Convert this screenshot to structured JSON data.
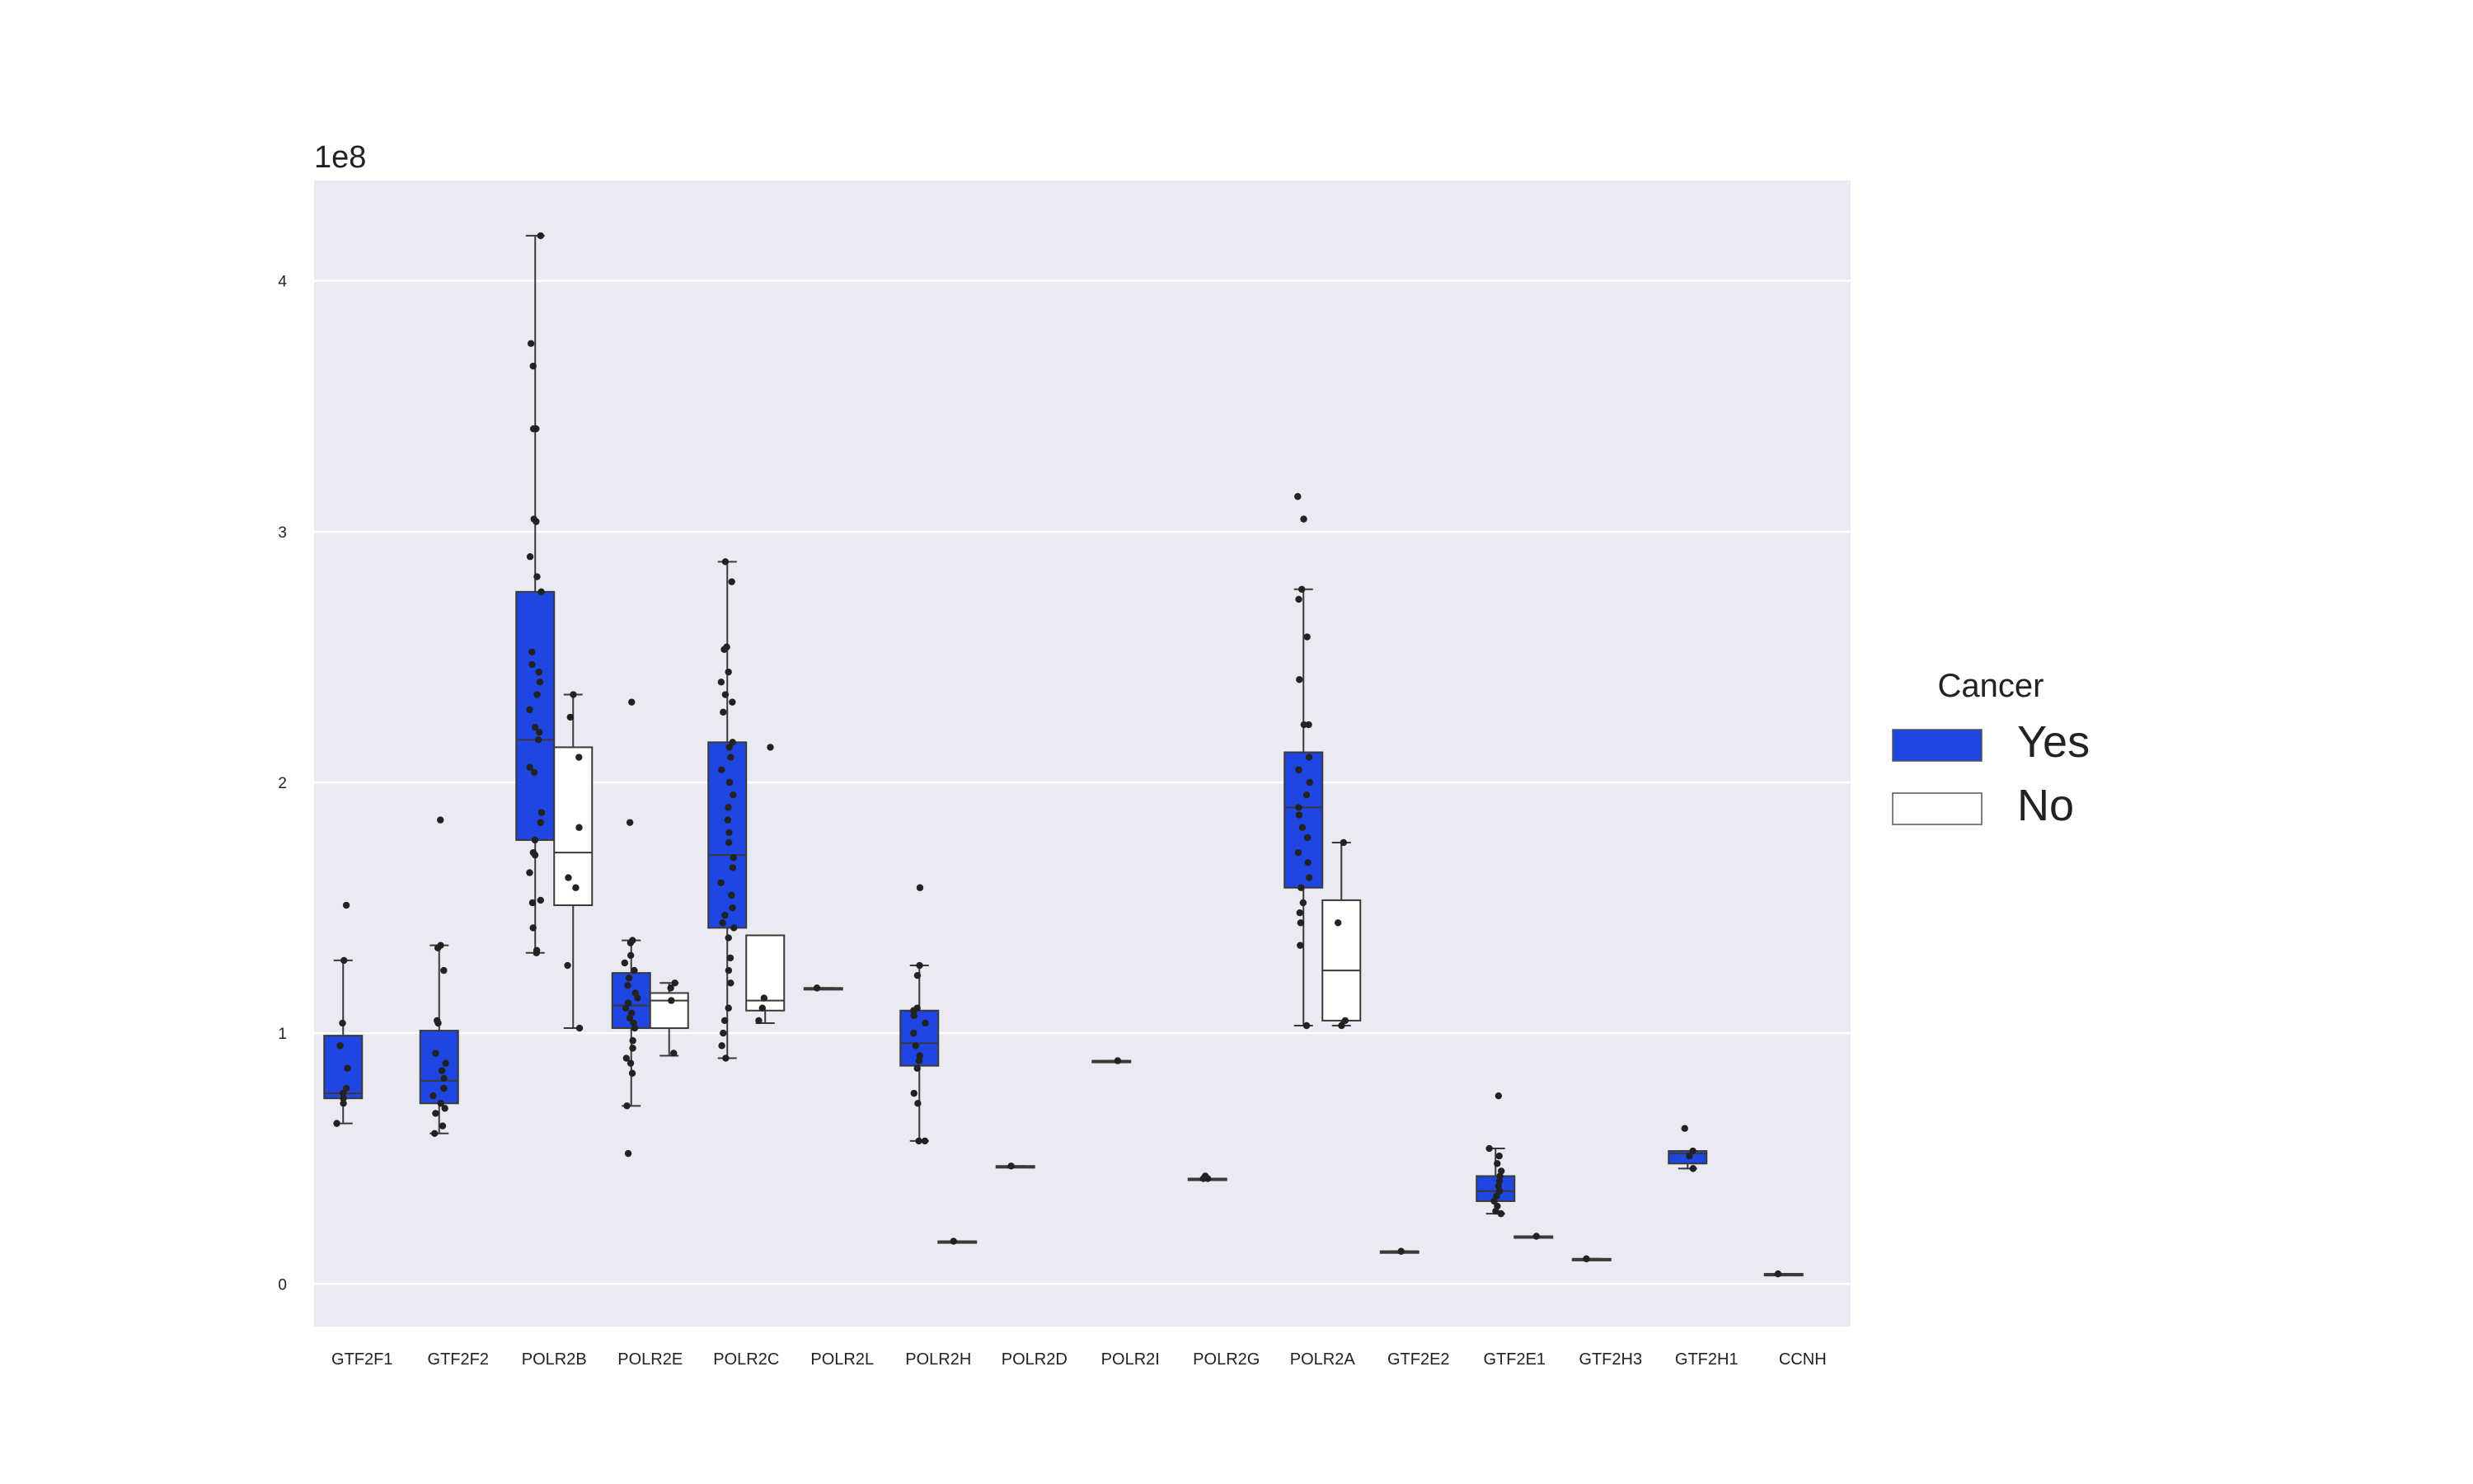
{
  "chart_data": {
    "type": "box",
    "exponent_label": "1e8",
    "y_ticks": [
      0,
      1,
      2,
      3,
      4
    ],
    "ylim": [
      -0.17,
      4.4
    ],
    "grid": true,
    "legend": {
      "title": "Cancer",
      "position": "right",
      "entries": [
        {
          "name": "Yes",
          "color": "#1f46e0"
        },
        {
          "name": "No",
          "color": "#ffffff"
        }
      ]
    },
    "colors": {
      "Yes": "#1f46e0",
      "No": "#ffffff",
      "background": "#eaeaf2",
      "grid": "#ffffff",
      "points": "#222222"
    },
    "categories": [
      "GTF2F1",
      "GTF2F2",
      "POLR2B",
      "POLR2E",
      "POLR2C",
      "POLR2L",
      "POLR2H",
      "POLR2D",
      "POLR2I",
      "POLR2G",
      "POLR2A",
      "GTF2E2",
      "GTF2E1",
      "GTF2H3",
      "GTF2H1",
      "CCNH"
    ],
    "boxes": [
      {
        "category": "GTF2F1",
        "group": "Yes",
        "whisker_low": 0.64,
        "q1": 0.74,
        "median": 0.76,
        "q3": 0.99,
        "whisker_high": 1.29,
        "points": [
          1.51,
          1.29,
          1.04,
          0.95,
          0.86,
          0.78,
          0.76,
          0.74,
          0.72,
          0.64
        ]
      },
      {
        "category": "GTF2F2",
        "group": "Yes",
        "whisker_low": 0.6,
        "q1": 0.72,
        "median": 0.81,
        "q3": 1.01,
        "whisker_high": 1.35,
        "points": [
          1.85,
          1.35,
          1.34,
          1.25,
          1.05,
          1.04,
          0.92,
          0.88,
          0.85,
          0.82,
          0.78,
          0.75,
          0.72,
          0.7,
          0.68,
          0.63,
          0.6
        ]
      },
      {
        "category": "POLR2B",
        "group": "Yes",
        "whisker_low": 1.32,
        "q1": 1.77,
        "median": 2.17,
        "q3": 2.76,
        "whisker_high": 4.18,
        "points": [
          4.18,
          3.75,
          3.66,
          3.41,
          3.41,
          3.05,
          3.04,
          2.9,
          2.82,
          2.76,
          2.52,
          2.47,
          2.44,
          2.4,
          2.35,
          2.29,
          2.22,
          2.2,
          2.17,
          2.06,
          2.04,
          1.88,
          1.84,
          1.77,
          1.72,
          1.71,
          1.64,
          1.53,
          1.52,
          1.42,
          1.33,
          1.32
        ]
      },
      {
        "category": "POLR2B",
        "group": "No",
        "whisker_low": 1.02,
        "q1": 1.51,
        "median": 1.72,
        "q3": 2.14,
        "whisker_high": 2.35,
        "points": [
          2.35,
          2.26,
          2.1,
          1.82,
          1.62,
          1.58,
          1.27,
          1.02
        ]
      },
      {
        "category": "POLR2E",
        "group": "Yes",
        "whisker_low": 0.71,
        "q1": 1.02,
        "median": 1.11,
        "q3": 1.24,
        "whisker_high": 1.37,
        "points": [
          2.32,
          1.84,
          1.37,
          1.36,
          1.31,
          1.28,
          1.25,
          1.22,
          1.19,
          1.16,
          1.14,
          1.12,
          1.1,
          1.08,
          1.06,
          1.04,
          1.02,
          0.97,
          0.94,
          0.9,
          0.88,
          0.84,
          0.71,
          0.52
        ]
      },
      {
        "category": "POLR2E",
        "group": "No",
        "whisker_low": 0.91,
        "q1": 1.02,
        "median": 1.13,
        "q3": 1.16,
        "whisker_high": 1.2,
        "points": [
          1.2,
          1.18,
          1.13,
          0.92
        ]
      },
      {
        "category": "POLR2C",
        "group": "Yes",
        "whisker_low": 0.9,
        "q1": 1.42,
        "median": 1.71,
        "q3": 2.16,
        "whisker_high": 2.88,
        "points": [
          2.88,
          2.8,
          2.54,
          2.53,
          2.44,
          2.4,
          2.35,
          2.32,
          2.28,
          2.16,
          2.14,
          2.1,
          2.05,
          2.0,
          1.95,
          1.9,
          1.85,
          1.8,
          1.76,
          1.7,
          1.66,
          1.6,
          1.55,
          1.5,
          1.47,
          1.44,
          1.42,
          1.38,
          1.3,
          1.25,
          1.2,
          1.1,
          1.05,
          1.0,
          0.95,
          0.9
        ]
      },
      {
        "category": "POLR2C",
        "group": "No",
        "whisker_low": 1.04,
        "q1": 1.09,
        "median": 1.13,
        "q3": 1.39,
        "whisker_high": 1.39,
        "points": [
          2.14,
          1.14,
          1.1,
          1.05
        ]
      },
      {
        "category": "POLR2L",
        "group": "Yes",
        "whisker_low": 1.18,
        "q1": 1.18,
        "median": 1.18,
        "q3": 1.18,
        "whisker_high": 1.18,
        "points": [
          1.18
        ]
      },
      {
        "category": "POLR2H",
        "group": "Yes",
        "whisker_low": 0.57,
        "q1": 0.87,
        "median": 0.96,
        "q3": 1.09,
        "whisker_high": 1.27,
        "points": [
          1.58,
          1.27,
          1.23,
          1.1,
          1.09,
          1.07,
          1.04,
          1.0,
          0.95,
          0.91,
          0.89,
          0.86,
          0.76,
          0.72,
          0.57,
          0.57
        ]
      },
      {
        "category": "POLR2H",
        "group": "No",
        "whisker_low": 0.17,
        "q1": 0.17,
        "median": 0.17,
        "q3": 0.17,
        "whisker_high": 0.17,
        "points": [
          0.17
        ]
      },
      {
        "category": "POLR2D",
        "group": "Yes",
        "whisker_low": 0.47,
        "q1": 0.47,
        "median": 0.47,
        "q3": 0.47,
        "whisker_high": 0.47,
        "points": [
          0.47
        ]
      },
      {
        "category": "POLR2I",
        "group": "Yes",
        "whisker_low": 0.89,
        "q1": 0.89,
        "median": 0.89,
        "q3": 0.89,
        "whisker_high": 0.89,
        "points": [
          0.89
        ]
      },
      {
        "category": "POLR2G",
        "group": "Yes",
        "whisker_low": 0.42,
        "q1": 0.42,
        "median": 0.42,
        "q3": 0.42,
        "whisker_high": 0.42,
        "points": [
          0.43,
          0.42,
          0.42
        ]
      },
      {
        "category": "POLR2A",
        "group": "Yes",
        "whisker_low": 1.03,
        "q1": 1.58,
        "median": 1.9,
        "q3": 2.12,
        "whisker_high": 2.77,
        "points": [
          3.14,
          3.05,
          2.77,
          2.73,
          2.58,
          2.41,
          2.23,
          2.23,
          2.1,
          2.05,
          2.0,
          1.95,
          1.9,
          1.87,
          1.82,
          1.78,
          1.72,
          1.68,
          1.62,
          1.58,
          1.52,
          1.48,
          1.44,
          1.35,
          1.03
        ]
      },
      {
        "category": "POLR2A",
        "group": "No",
        "whisker_low": 1.03,
        "q1": 1.05,
        "median": 1.25,
        "q3": 1.53,
        "whisker_high": 1.76,
        "points": [
          1.76,
          1.44,
          1.05,
          1.03
        ]
      },
      {
        "category": "GTF2E2",
        "group": "Yes",
        "whisker_low": 0.13,
        "q1": 0.13,
        "median": 0.13,
        "q3": 0.13,
        "whisker_high": 0.13,
        "points": [
          0.13
        ]
      },
      {
        "category": "GTF2E1",
        "group": "Yes",
        "whisker_low": 0.28,
        "q1": 0.33,
        "median": 0.37,
        "q3": 0.43,
        "whisker_high": 0.54,
        "points": [
          0.75,
          0.54,
          0.51,
          0.48,
          0.45,
          0.43,
          0.41,
          0.39,
          0.37,
          0.35,
          0.33,
          0.31,
          0.29,
          0.28
        ]
      },
      {
        "category": "GTF2E1",
        "group": "No",
        "whisker_low": 0.19,
        "q1": 0.19,
        "median": 0.19,
        "q3": 0.19,
        "whisker_high": 0.19,
        "points": [
          0.19
        ]
      },
      {
        "category": "GTF2H3",
        "group": "Yes",
        "whisker_low": 0.1,
        "q1": 0.1,
        "median": 0.1,
        "q3": 0.1,
        "whisker_high": 0.1,
        "points": [
          0.1
        ]
      },
      {
        "category": "GTF2H1",
        "group": "Yes",
        "whisker_low": 0.46,
        "q1": 0.48,
        "median": 0.52,
        "q3": 0.53,
        "whisker_high": 0.53,
        "points": [
          0.62,
          0.53,
          0.51,
          0.46
        ]
      },
      {
        "category": "CCNH",
        "group": "Yes",
        "whisker_low": 0.04,
        "q1": 0.04,
        "median": 0.04,
        "q3": 0.04,
        "whisker_high": 0.04,
        "points": [
          0.04
        ]
      }
    ]
  }
}
